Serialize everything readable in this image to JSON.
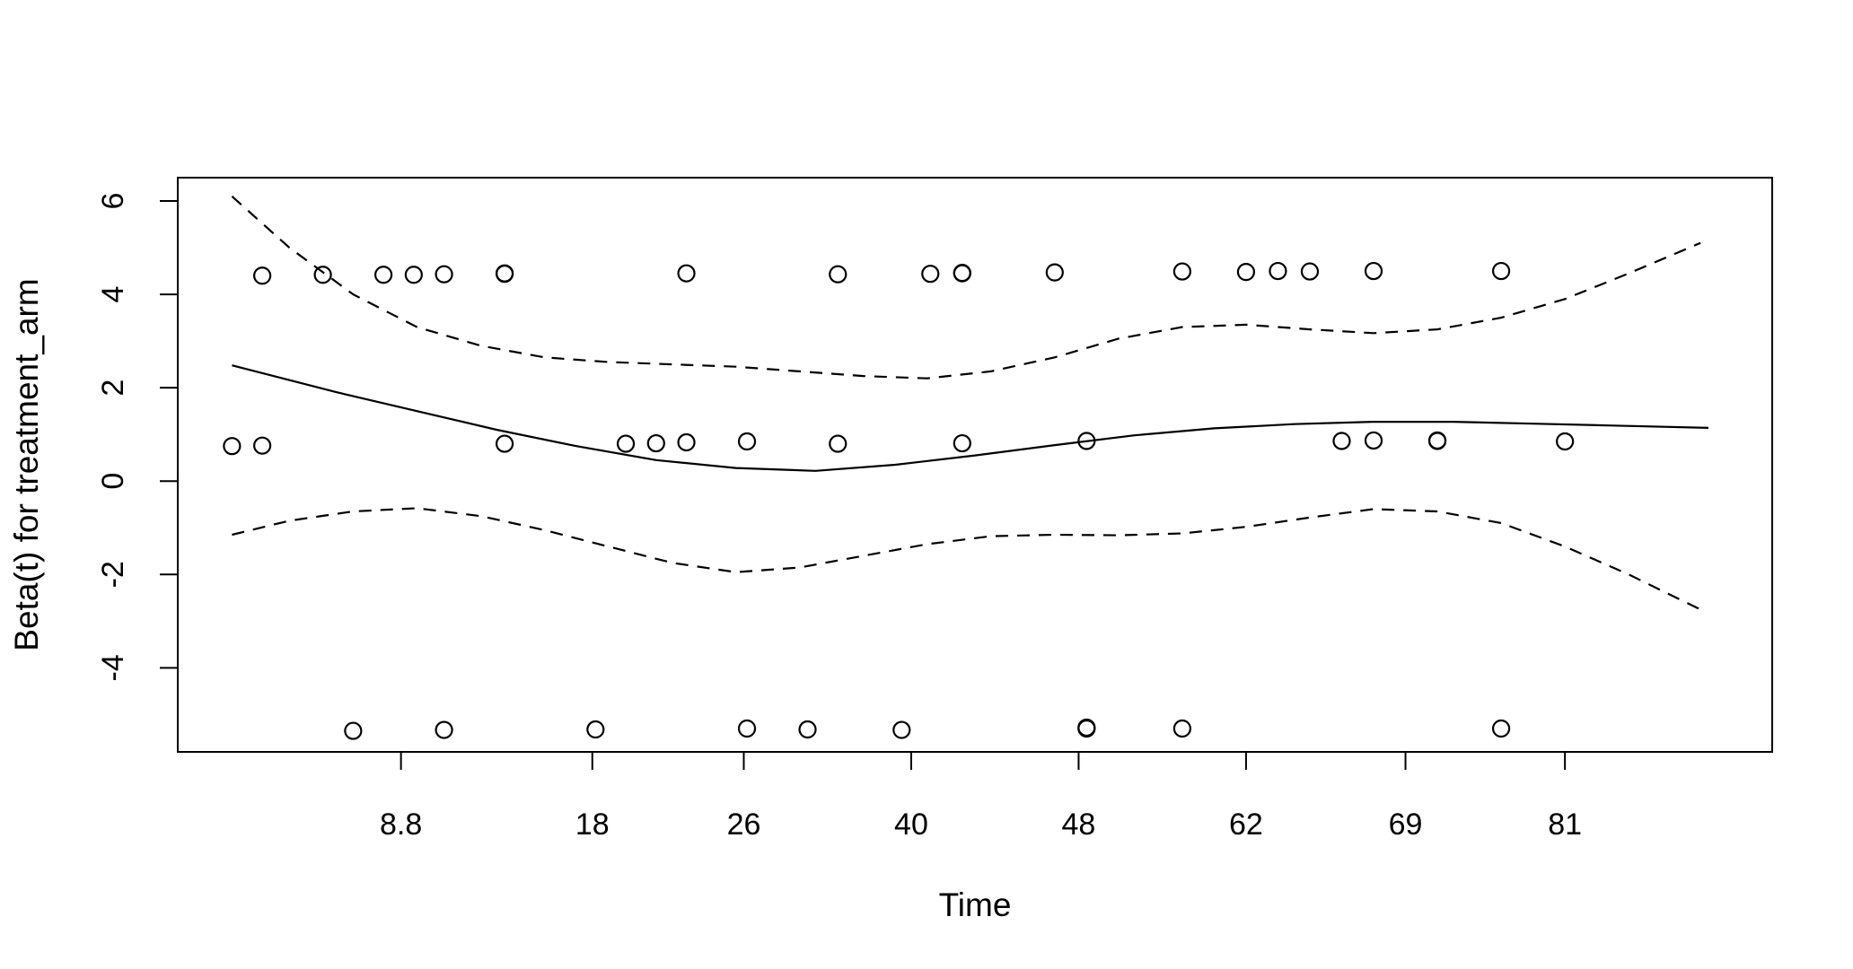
{
  "chart_data": {
    "type": "line",
    "title": "",
    "xlabel": "Time",
    "ylabel": "Beta(t) for treatment_arm",
    "x_scale": "quantile transform (ticks placed at transformed positions)",
    "xlim_position": [
      0.5,
      10.5
    ],
    "ylim": [
      -5.8,
      6.5
    ],
    "x_ticks": [
      {
        "pos": 1.9,
        "label": "8.8"
      },
      {
        "pos": 3.1,
        "label": "18"
      },
      {
        "pos": 4.05,
        "label": "26"
      },
      {
        "pos": 5.1,
        "label": "40"
      },
      {
        "pos": 6.15,
        "label": "48"
      },
      {
        "pos": 7.2,
        "label": "62"
      },
      {
        "pos": 8.2,
        "label": "69"
      },
      {
        "pos": 9.2,
        "label": "81"
      }
    ],
    "y_ticks": [
      {
        "value": -4,
        "label": "-4"
      },
      {
        "value": -2,
        "label": "-2"
      },
      {
        "value": 0,
        "label": "0"
      },
      {
        "value": 2,
        "label": "2"
      },
      {
        "value": 4,
        "label": "4"
      },
      {
        "value": 6,
        "label": "6"
      }
    ],
    "series": [
      {
        "style": "solid",
        "x": [
          0.84,
          1.5,
          2.0,
          2.5,
          3.0,
          3.5,
          4.0,
          4.5,
          5.0,
          5.5,
          6.0,
          6.5,
          7.0,
          7.5,
          8.0,
          8.5,
          9.0,
          9.5,
          10.1
        ],
        "y": [
          2.48,
          1.9,
          1.5,
          1.1,
          0.75,
          0.45,
          0.28,
          0.22,
          0.35,
          0.55,
          0.77,
          0.98,
          1.13,
          1.22,
          1.27,
          1.27,
          1.23,
          1.19,
          1.14
        ]
      },
      {
        "style": "dashed",
        "x": [
          0.84,
          1.2,
          1.6,
          2.0,
          2.4,
          2.8,
          3.2,
          3.6,
          4.0,
          4.4,
          4.8,
          5.2,
          5.6,
          6.0,
          6.4,
          6.8,
          7.2,
          7.6,
          8.0,
          8.4,
          8.8,
          9.2,
          9.6,
          10.05
        ],
        "y": [
          6.1,
          5.0,
          4.0,
          3.3,
          2.9,
          2.65,
          2.55,
          2.5,
          2.45,
          2.35,
          2.25,
          2.2,
          2.35,
          2.65,
          3.05,
          3.3,
          3.35,
          3.25,
          3.17,
          3.25,
          3.5,
          3.9,
          4.45,
          5.1
        ]
      },
      {
        "style": "dashed",
        "x": [
          0.84,
          1.2,
          1.6,
          2.0,
          2.4,
          2.8,
          3.2,
          3.6,
          4.0,
          4.4,
          4.8,
          5.2,
          5.6,
          6.0,
          6.4,
          6.8,
          7.2,
          7.6,
          8.0,
          8.4,
          8.8,
          9.2,
          9.6,
          10.05
        ],
        "y": [
          -1.15,
          -0.85,
          -0.65,
          -0.58,
          -0.75,
          -1.05,
          -1.4,
          -1.75,
          -1.95,
          -1.85,
          -1.6,
          -1.35,
          -1.18,
          -1.15,
          -1.16,
          -1.12,
          -0.98,
          -0.78,
          -0.6,
          -0.65,
          -0.9,
          -1.4,
          -2.0,
          -2.75
        ]
      }
    ],
    "points": [
      {
        "x": 0.84,
        "y": 0.75
      },
      {
        "x": 1.03,
        "y": 0.76
      },
      {
        "x": 1.03,
        "y": 4.4
      },
      {
        "x": 1.41,
        "y": 4.42
      },
      {
        "x": 1.6,
        "y": -5.35
      },
      {
        "x": 1.79,
        "y": 4.42
      },
      {
        "x": 1.98,
        "y": 4.42
      },
      {
        "x": 2.17,
        "y": 4.43
      },
      {
        "x": 2.17,
        "y": -5.33
      },
      {
        "x": 2.55,
        "y": 4.44
      },
      {
        "x": 2.55,
        "y": 4.45
      },
      {
        "x": 2.55,
        "y": 0.8
      },
      {
        "x": 3.12,
        "y": -5.32
      },
      {
        "x": 3.31,
        "y": 0.8
      },
      {
        "x": 3.5,
        "y": 0.81
      },
      {
        "x": 3.69,
        "y": 0.83
      },
      {
        "x": 3.69,
        "y": 4.45
      },
      {
        "x": 4.07,
        "y": 0.85
      },
      {
        "x": 4.07,
        "y": -5.3
      },
      {
        "x": 4.45,
        "y": -5.32
      },
      {
        "x": 4.64,
        "y": 0.8
      },
      {
        "x": 4.64,
        "y": 4.43
      },
      {
        "x": 5.04,
        "y": -5.33
      },
      {
        "x": 5.22,
        "y": 4.44
      },
      {
        "x": 5.42,
        "y": 4.45
      },
      {
        "x": 5.42,
        "y": 4.46
      },
      {
        "x": 5.42,
        "y": 0.81
      },
      {
        "x": 6.0,
        "y": 4.47
      },
      {
        "x": 6.2,
        "y": 0.86
      },
      {
        "x": 6.2,
        "y": -5.3
      },
      {
        "x": 6.2,
        "y": -5.28
      },
      {
        "x": 6.8,
        "y": 4.49
      },
      {
        "x": 6.8,
        "y": -5.3
      },
      {
        "x": 7.2,
        "y": 4.48
      },
      {
        "x": 7.4,
        "y": 4.5
      },
      {
        "x": 7.6,
        "y": 4.49
      },
      {
        "x": 7.8,
        "y": 0.86
      },
      {
        "x": 8.0,
        "y": 4.5
      },
      {
        "x": 8.0,
        "y": 0.87
      },
      {
        "x": 8.4,
        "y": 0.86
      },
      {
        "x": 8.4,
        "y": 0.87
      },
      {
        "x": 8.8,
        "y": 4.5
      },
      {
        "x": 8.8,
        "y": -5.3
      },
      {
        "x": 9.2,
        "y": 0.85
      }
    ]
  }
}
